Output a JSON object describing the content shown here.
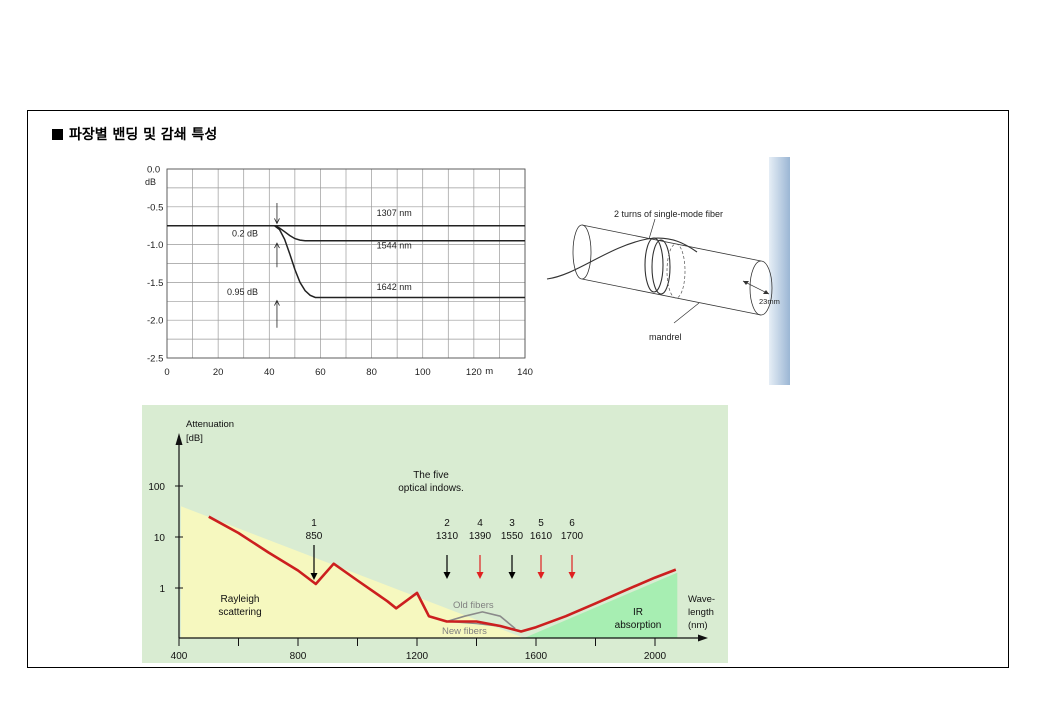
{
  "heading": "파장별 밴딩 및 감쇄 특성",
  "chart_data": [
    {
      "type": "line",
      "xlabel": "m",
      "ylabel": "dB",
      "xlim": [
        0,
        140
      ],
      "ylim": [
        -2.5,
        0.0
      ],
      "x_ticks": [
        "0",
        "20",
        "40",
        "60",
        "80",
        "100",
        "120",
        "140"
      ],
      "y_ticks": [
        "0.0",
        "-0.5",
        "-1.0",
        "-1.5",
        "-2.0",
        "-2.5"
      ],
      "grid": true,
      "series": [
        {
          "name": "1307 nm",
          "x": [
            0,
            42,
            140
          ],
          "y": [
            -0.75,
            -0.75,
            -0.75
          ]
        },
        {
          "name": "1544 nm",
          "x": [
            0,
            42,
            44,
            46,
            48,
            50,
            52,
            54,
            56,
            140
          ],
          "y": [
            -0.75,
            -0.75,
            -0.78,
            -0.83,
            -0.88,
            -0.92,
            -0.94,
            -0.95,
            -0.95,
            -0.95
          ]
        },
        {
          "name": "1642 nm",
          "x": [
            0,
            42,
            44,
            46,
            48,
            50,
            52,
            54,
            56,
            58,
            60,
            62,
            140
          ],
          "y": [
            -0.75,
            -0.75,
            -0.8,
            -0.93,
            -1.12,
            -1.33,
            -1.5,
            -1.61,
            -1.67,
            -1.7,
            -1.7,
            -1.7,
            -1.7
          ]
        }
      ],
      "annotations": [
        "0.2 dB",
        "0.95 dB",
        "dB"
      ]
    },
    {
      "type": "line",
      "xlabel": "Wave-length (nm)",
      "ylabel": "Attenuation [dB]",
      "xlim": [
        400,
        2100
      ],
      "x_ticks": [
        "400",
        "800",
        "1200",
        "1600",
        "2000"
      ],
      "y_ticks": [
        "100",
        "10",
        "1"
      ],
      "scale_y": "log",
      "series": [
        {
          "name": "",
          "x": [
            500,
            600,
            700,
            800,
            860,
            920,
            1000,
            1100,
            1130,
            1200,
            1240,
            1300,
            1400,
            1480,
            1550,
            1600,
            1700,
            1800,
            1900,
            2000,
            2070
          ],
          "y": [
            25,
            12,
            5,
            2.2,
            1.2,
            3,
            1.4,
            0.55,
            0.4,
            0.8,
            0.28,
            0.22,
            0.22,
            0.18,
            0.14,
            0.17,
            0.28,
            0.5,
            0.9,
            1.6,
            2.3
          ]
        },
        {
          "name": "Old fibers",
          "x": [
            1300,
            1360,
            1420,
            1480,
            1530
          ],
          "y": [
            0.22,
            0.28,
            0.34,
            0.28,
            0.16
          ]
        },
        {
          "name": "New fibers",
          "x": [
            1300,
            1400,
            1500
          ],
          "y": [
            0.22,
            0.2,
            0.17
          ]
        }
      ],
      "windows": [
        {
          "label": "1",
          "nm": "850",
          "color": "#000000"
        },
        {
          "label": "2",
          "nm": "1310",
          "color": "#000000"
        },
        {
          "label": "4",
          "nm": "1390",
          "color": "#e02020"
        },
        {
          "label": "3",
          "nm": "1550",
          "color": "#000000"
        },
        {
          "label": "5",
          "nm": "1610",
          "color": "#e02020"
        },
        {
          "label": "6",
          "nm": "1700",
          "color": "#e02020"
        }
      ],
      "annotations": [
        "The five optical indows.",
        "Rayleigh scattering",
        "IR absorption",
        "Old fibers",
        "New fibers"
      ],
      "colors": {
        "background": "#d9ecd2",
        "rayleigh": "#f6f8bf",
        "ir": "#a7eeb2",
        "curve": "#cc1f1f"
      }
    }
  ],
  "fig2": {
    "title": "2 turns of single-mode fiber",
    "mandrel": "mandrel",
    "diameter": "23mm"
  }
}
